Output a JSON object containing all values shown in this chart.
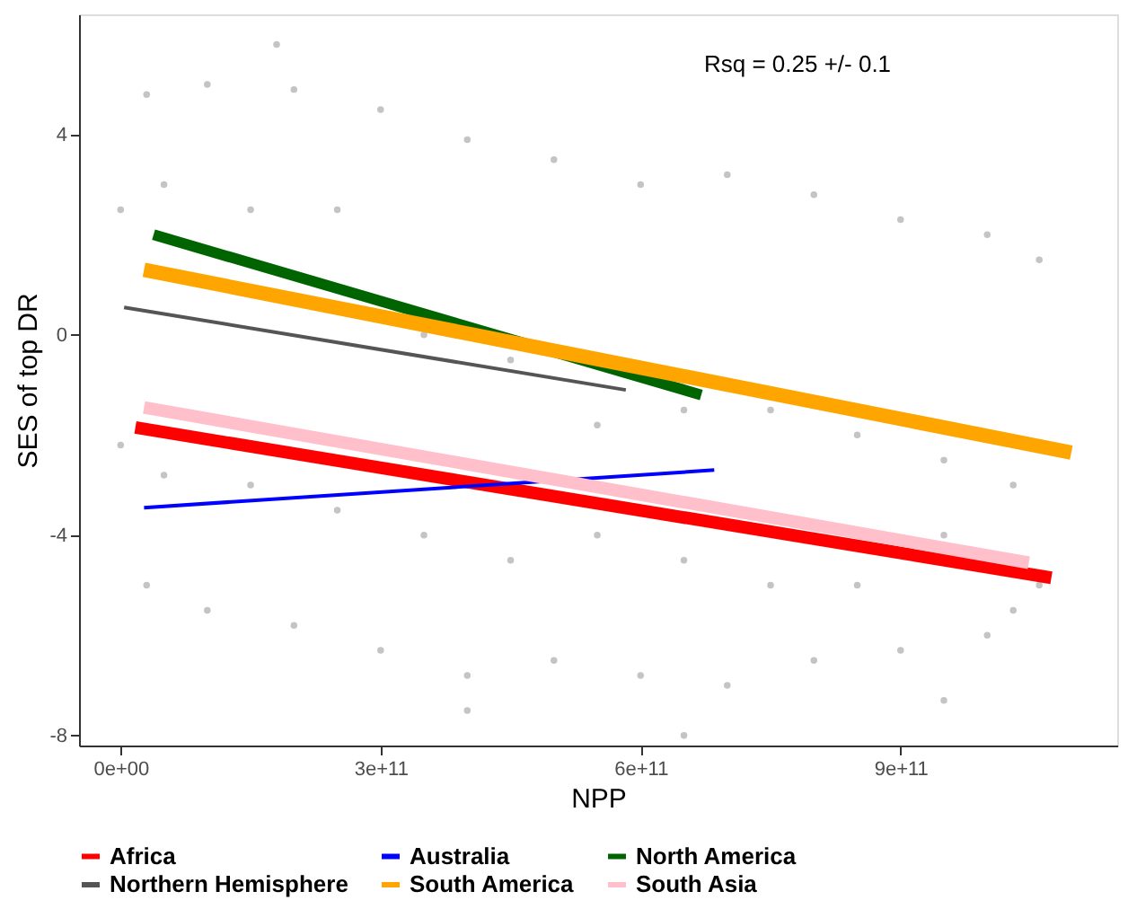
{
  "chart_data": {
    "type": "scatter",
    "xlabel": "NPP",
    "ylabel": "SES of top DR",
    "annotations": [
      "Rsq = 0.25 +/- 0.1"
    ],
    "xlim": [
      -48000000000.0,
      1150000000000.0
    ],
    "ylim": [
      -8.2,
      6.4
    ],
    "xticks": [
      {
        "value": 0,
        "label": "0e+00"
      },
      {
        "value": 300000000000.0,
        "label": "3e+11"
      },
      {
        "value": 600000000000.0,
        "label": "6e+11"
      },
      {
        "value": 900000000000.0,
        "label": "9e+11"
      }
    ],
    "yticks": [
      {
        "value": -8,
        "label": "-8"
      },
      {
        "value": -4,
        "label": "-4"
      },
      {
        "value": 0,
        "label": "0"
      },
      {
        "value": 4,
        "label": "4"
      }
    ],
    "grid": false,
    "legend": "bottom",
    "series": [
      {
        "marker": "circle",
        "color": "#bebebe",
        "x": [
          0,
          30000000000.0,
          100000000000.0,
          200000000000.0,
          300000000000.0,
          400000000000.0,
          500000000000.0,
          600000000000.0,
          700000000000.0,
          800000000000.0,
          900000000000.0,
          1000000000000.0,
          1060000000000.0,
          0,
          30000000000.0,
          100000000000.0,
          200000000000.0,
          300000000000.0,
          400000000000.0,
          500000000000.0,
          600000000000.0,
          700000000000.0,
          800000000000.0,
          900000000000.0,
          1000000000000.0,
          1060000000000.0,
          50000000000.0,
          50000000000.0,
          150000000000.0,
          150000000000.0,
          250000000000.0,
          250000000000.0,
          350000000000.0,
          350000000000.0,
          450000000000.0,
          450000000000.0,
          550000000000.0,
          550000000000.0,
          650000000000.0,
          650000000000.0,
          750000000000.0,
          750000000000.0,
          850000000000.0,
          850000000000.0,
          950000000000.0,
          950000000000.0,
          1030000000000.0,
          1030000000000.0,
          180000000000.0,
          400000000000.0,
          650000000000.0,
          950000000000.0
        ],
        "values": [
          2.5,
          4.8,
          5.0,
          4.9,
          4.5,
          3.9,
          3.5,
          3.0,
          3.2,
          2.8,
          2.3,
          2.0,
          1.5,
          -2.2,
          -5.0,
          -5.5,
          -5.8,
          -6.3,
          -6.8,
          -6.5,
          -6.8,
          -7.0,
          -6.5,
          -6.3,
          -6.0,
          -5.0,
          3.0,
          -2.8,
          2.5,
          -3,
          2.5,
          -3.5,
          0,
          -4,
          -0.5,
          -4.5,
          -1.8,
          -4,
          -1.5,
          -4.5,
          -1.5,
          -5,
          -2,
          -5,
          -2.5,
          -4,
          -3,
          -5.5,
          5.8,
          -7.5,
          -8.0,
          -7.3
        ]
      },
      {
        "type": "line",
        "name": "Africa",
        "color": "#ff0000",
        "x": [
          17000000000.0,
          1074000000000.0
        ],
        "values": [
          -1.85,
          -4.85
        ]
      },
      {
        "type": "line",
        "name": "Australia",
        "color": "#0000ff",
        "x": [
          27000000000.0,
          685000000000.0
        ],
        "values": [
          -3.45,
          -2.7
        ]
      },
      {
        "type": "line",
        "name": "North America",
        "color": "#006400",
        "x": [
          38000000000.0,
          670000000000.0
        ],
        "values": [
          2.0,
          -1.2
        ]
      },
      {
        "type": "line",
        "name": "Northern Hemisphere",
        "color": "#555555",
        "x": [
          4000000000.0,
          583000000000.0
        ],
        "values": [
          0.55,
          -1.1
        ]
      },
      {
        "type": "line",
        "name": "South America",
        "color": "#ffa500",
        "x": [
          27000000000.0,
          1097000000000.0
        ],
        "values": [
          1.3,
          -2.35
        ]
      },
      {
        "type": "line",
        "name": "South Asia",
        "color": "#ffc0cb",
        "x": [
          27000000000.0,
          1048000000000.0
        ],
        "values": [
          -1.45,
          -4.55
        ]
      }
    ]
  }
}
